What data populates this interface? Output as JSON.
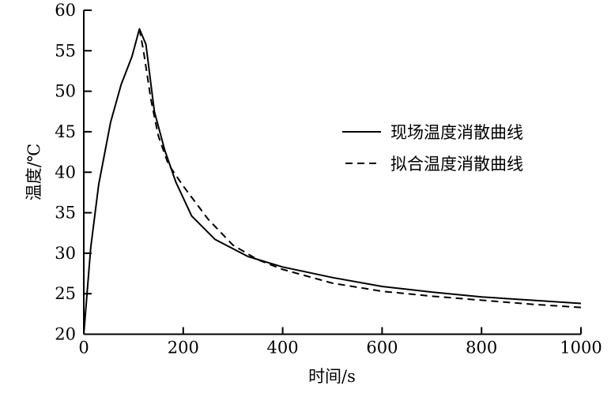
{
  "chart_data": {
    "type": "line",
    "xlabel": "时间/s",
    "ylabel": "温度/℃",
    "xlim": [
      0,
      1000
    ],
    "ylim": [
      20,
      60
    ],
    "xticks": [
      0,
      200,
      400,
      600,
      800,
      1000
    ],
    "yticks": [
      20,
      25,
      30,
      35,
      40,
      45,
      50,
      55,
      60
    ],
    "grid": false,
    "legend_position": "right",
    "series": [
      {
        "name": "现场温度消散曲线",
        "style": "solid",
        "color": "#000000",
        "x": [
          0,
          14,
          30,
          54,
          75,
          97,
          112,
          125,
          142,
          163,
          185,
          217,
          264,
          330,
          400,
          500,
          600,
          700,
          800,
          900,
          1000
        ],
        "y": [
          20,
          30.7,
          38.5,
          46.2,
          50.8,
          54.3,
          57.7,
          55.8,
          47.5,
          42.7,
          38.8,
          34.6,
          31.7,
          29.6,
          28.3,
          27.0,
          25.9,
          25.2,
          24.6,
          24.2,
          23.8
        ]
      },
      {
        "name": "拟合温度消散曲线",
        "style": "dashed",
        "color": "#000000",
        "x": [
          112,
          120,
          135,
          150,
          170,
          200,
          250,
          300,
          350,
          400,
          500,
          600,
          700,
          800,
          900,
          1000
        ],
        "y": [
          57.7,
          55.0,
          49.0,
          44.5,
          41.0,
          38.3,
          34.2,
          31.0,
          29.2,
          28.0,
          26.3,
          25.3,
          24.7,
          24.2,
          23.7,
          23.3
        ]
      }
    ]
  }
}
